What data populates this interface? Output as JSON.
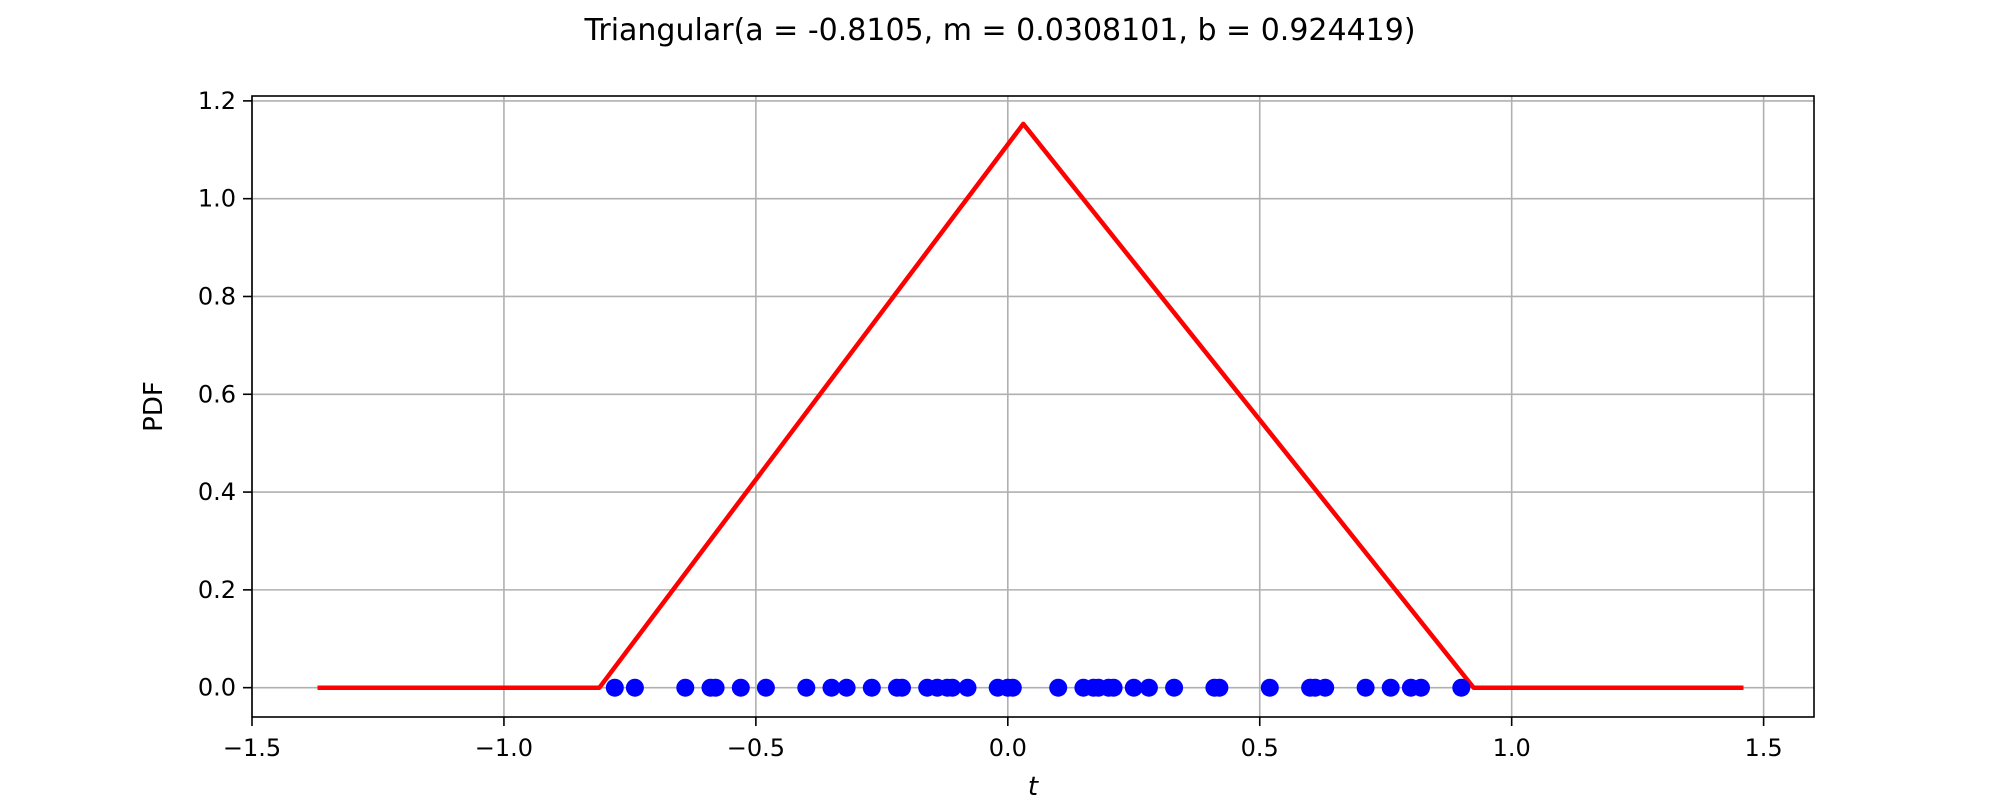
{
  "chart_data": {
    "type": "line",
    "title": "Triangular(a = -0.8105, m = 0.0308101, b = 0.924419)",
    "xlabel": "t",
    "ylabel": "PDF",
    "xlim": [
      -1.5,
      1.6
    ],
    "ylim": [
      -0.06,
      1.21
    ],
    "xticks": [
      -1.5,
      -1.0,
      -0.5,
      0.0,
      0.5,
      1.0,
      1.5
    ],
    "xtick_labels": [
      "−1.5",
      "−1.0",
      "−0.5",
      "0.0",
      "0.5",
      "1.0",
      "1.5"
    ],
    "yticks": [
      0.0,
      0.2,
      0.4,
      0.6,
      0.8,
      1.0,
      1.2
    ],
    "ytick_labels": [
      "0.0",
      "0.2",
      "0.4",
      "0.6",
      "0.8",
      "1.0",
      "1.2"
    ],
    "grid": true,
    "series": [
      {
        "kind": "line",
        "color": "#ff0000",
        "x": [
          -1.37,
          -0.8105,
          0.0308101,
          0.924419,
          1.46
        ],
        "y": [
          0.0,
          0.0,
          1.153,
          0.0,
          0.0
        ]
      },
      {
        "kind": "scatter",
        "color": "#0000ff",
        "x": [
          -0.78,
          -0.74,
          -0.64,
          -0.59,
          -0.58,
          -0.53,
          -0.48,
          -0.4,
          -0.35,
          -0.32,
          -0.27,
          -0.22,
          -0.21,
          -0.16,
          -0.14,
          -0.12,
          -0.11,
          -0.08,
          -0.02,
          0.0,
          0.01,
          0.1,
          0.15,
          0.17,
          0.18,
          0.2,
          0.21,
          0.25,
          0.28,
          0.33,
          0.41,
          0.42,
          0.52,
          0.6,
          0.61,
          0.63,
          0.71,
          0.76,
          0.8,
          0.82,
          0.9
        ],
        "y": [
          0,
          0,
          0,
          0,
          0,
          0,
          0,
          0,
          0,
          0,
          0,
          0,
          0,
          0,
          0,
          0,
          0,
          0,
          0,
          0,
          0,
          0,
          0,
          0,
          0,
          0,
          0,
          0,
          0,
          0,
          0,
          0,
          0,
          0,
          0,
          0,
          0,
          0,
          0,
          0,
          0
        ]
      }
    ]
  }
}
